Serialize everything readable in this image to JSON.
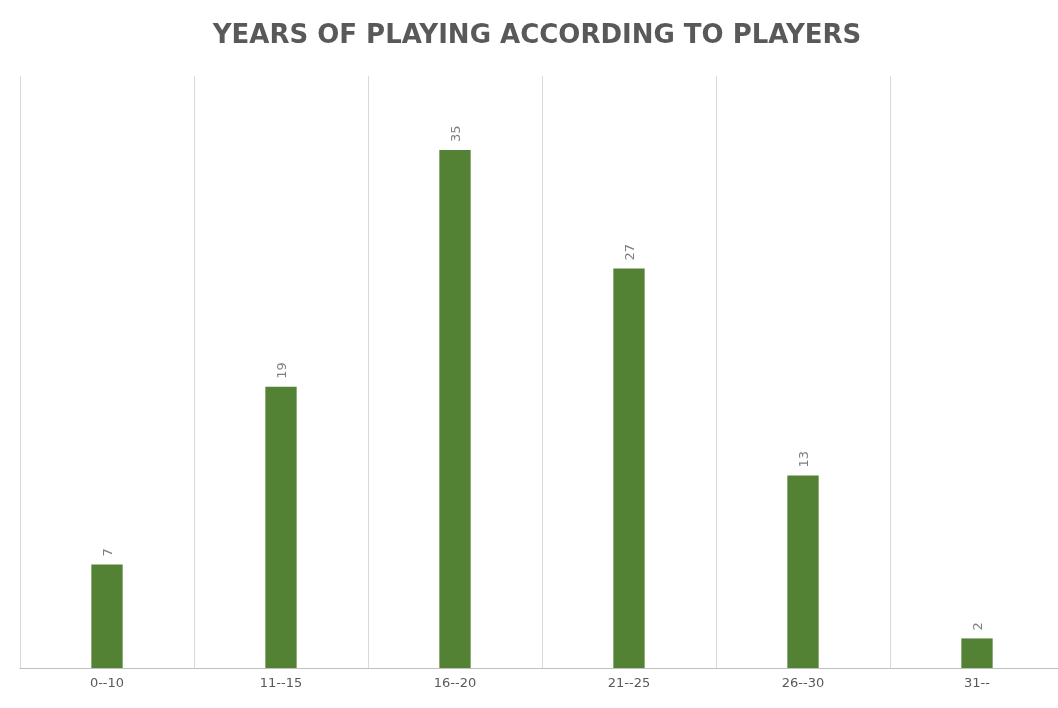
{
  "chart_data": {
    "type": "bar",
    "title": "YEARS OF PLAYING ACCORDING TO PLAYERS",
    "categories": [
      "0--10",
      "11--15",
      "16--20",
      "21--25",
      "26--30",
      "31--"
    ],
    "values": [
      7,
      19,
      35,
      27,
      13,
      2
    ],
    "color": "#548235",
    "data_labels": true,
    "grid": "x"
  }
}
